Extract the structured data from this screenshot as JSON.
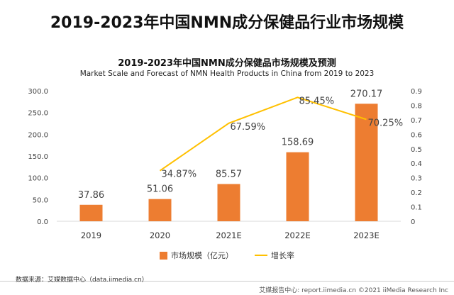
{
  "header": {
    "title": "2019-2023年中国NMN成分保健品行业市场规模"
  },
  "chart_data": {
    "type": "bar",
    "title": "2019-2023年中国NMN成分保健品市场规模及预测",
    "subtitle": "Market Scale and Forecast of NMN Health Products in China from 2019 to 2023",
    "categories": [
      "2019",
      "2020",
      "2021E",
      "2022E",
      "2023E"
    ],
    "series": [
      {
        "name": "市场规模（亿元）",
        "type": "bar",
        "axis": "left",
        "values": [
          37.86,
          51.06,
          85.57,
          158.69,
          270.17
        ],
        "labels": [
          "37.86",
          "51.06",
          "85.57",
          "158.69",
          "270.17"
        ],
        "color": "#ED7D31"
      },
      {
        "name": "增长率",
        "type": "line",
        "axis": "right",
        "values": [
          null,
          0.3487,
          0.6759,
          0.8545,
          0.7025
        ],
        "labels": [
          "",
          "34.87%",
          "67.59%",
          "85.45%",
          "70.25%"
        ],
        "color": "#FFC000"
      }
    ],
    "y_left": {
      "min": 0,
      "max": 300,
      "step": 50,
      "ticks": [
        "0.0",
        "50.0",
        "100.0",
        "150.0",
        "200.0",
        "250.0",
        "300.0"
      ]
    },
    "y_right": {
      "min": 0,
      "max": 0.9,
      "step": 0.1,
      "ticks": [
        "0",
        "0.1",
        "0.2",
        "0.3",
        "0.4",
        "0.5",
        "0.6",
        "0.7",
        "0.8",
        "0.9"
      ]
    },
    "grid": false,
    "legend": "bottom-center"
  },
  "footer": {
    "source": "数据来源：艾媒数据中心（data.iimedia.cn）",
    "brand": "艾媒报告中心: report.iimedia.cn  ©2021  iiMedia Research Inc"
  },
  "colors": {
    "bar": "#ED7D31",
    "line": "#FFC000",
    "axis": "#D9D9D9"
  }
}
